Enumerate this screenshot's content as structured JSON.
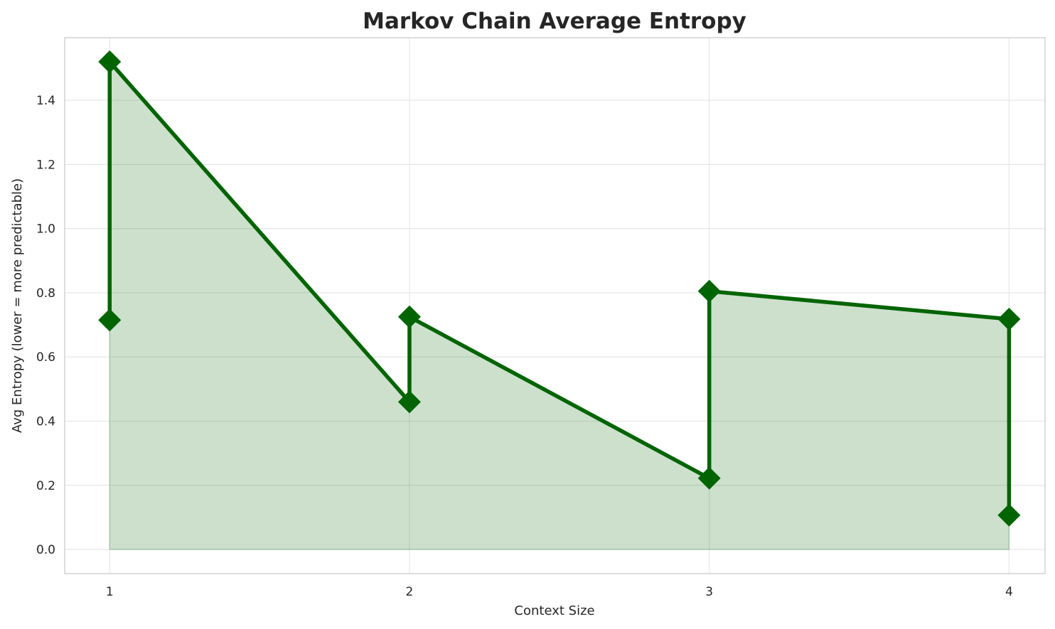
{
  "chart_data": {
    "type": "line",
    "title": "Markov Chain Average Entropy",
    "xlabel": "Context Size",
    "ylabel": "Avg Entropy (lower = more predictable)",
    "x_ticks": [
      "1",
      "2",
      "3",
      "4"
    ],
    "y_ticks": [
      "0.0",
      "0.2",
      "0.4",
      "0.6",
      "0.8",
      "1.0",
      "1.2",
      "1.4"
    ],
    "xlim": [
      0.85,
      4.12
    ],
    "ylim": [
      -0.075,
      1.595
    ],
    "grid": true,
    "fill_under": true,
    "series": [
      {
        "x": [
          1,
          1,
          2,
          2,
          3,
          3,
          4,
          4
        ],
        "y": [
          0.715,
          1.52,
          0.46,
          0.725,
          0.222,
          0.805,
          0.718,
          0.107
        ]
      }
    ],
    "colors": {
      "line": "#006400",
      "marker": "#006400",
      "fill": "#006400",
      "grid": "#e6e6e6",
      "spine": "#cccccc"
    }
  }
}
